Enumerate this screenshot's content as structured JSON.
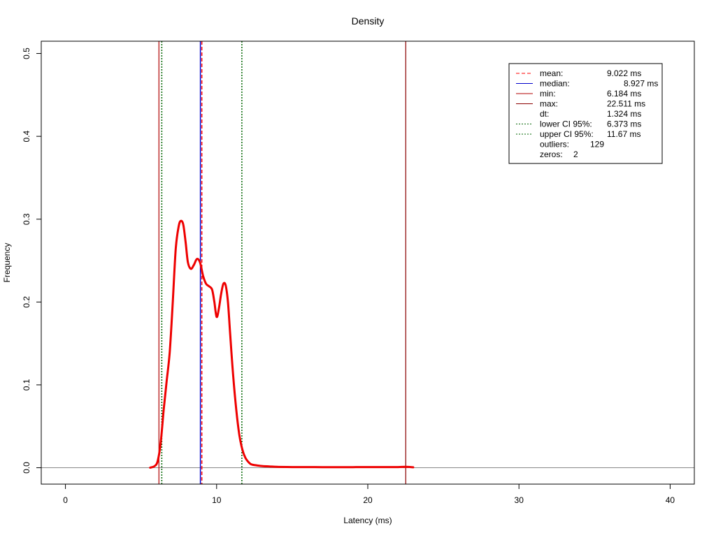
{
  "chart_data": {
    "type": "line",
    "title": "Density",
    "xlabel": "Latency (ms)",
    "ylabel": "Frequency",
    "xlim": [
      -1.6,
      41.6
    ],
    "ylim": [
      -0.0198,
      0.5148
    ],
    "xticks": [
      0,
      10,
      20,
      30,
      40
    ],
    "xtick_labels": [
      "0",
      "10",
      "20",
      "30",
      "40"
    ],
    "yticks": [
      0.0,
      0.1,
      0.2,
      0.3,
      0.4,
      0.5
    ],
    "ytick_labels": [
      "0.0",
      "0.1",
      "0.2",
      "0.3",
      "0.4",
      "0.5"
    ],
    "grid": false,
    "legend_position": "top-right",
    "colors": {
      "density": "#ee0000",
      "mean": "#ff0000",
      "median": "#0000cc",
      "min": "#b00000",
      "max": "#8b0000",
      "ci": "#006400",
      "baseline": "#888888"
    },
    "series": [
      {
        "x": [
          5.6,
          5.9,
          6.1,
          6.3,
          6.5,
          6.7,
          6.9,
          7.1,
          7.3,
          7.5,
          7.65,
          7.8,
          7.95,
          8.1,
          8.3,
          8.5,
          8.7,
          8.9,
          9.1,
          9.3,
          9.5,
          9.7,
          9.85,
          10.0,
          10.15,
          10.3,
          10.45,
          10.6,
          10.75,
          10.9,
          11.1,
          11.3,
          11.5,
          11.7,
          11.9,
          12.1,
          12.3,
          12.6,
          13.0,
          13.5,
          14.0,
          15.0,
          16.0,
          17.0,
          18.0,
          19.0,
          20.0,
          21.0,
          22.0,
          22.5,
          23.0
        ],
        "y": [
          0.0,
          0.002,
          0.008,
          0.03,
          0.07,
          0.105,
          0.14,
          0.2,
          0.265,
          0.292,
          0.298,
          0.293,
          0.272,
          0.248,
          0.24,
          0.245,
          0.252,
          0.248,
          0.232,
          0.222,
          0.219,
          0.215,
          0.2,
          0.182,
          0.192,
          0.21,
          0.222,
          0.22,
          0.2,
          0.16,
          0.11,
          0.07,
          0.04,
          0.022,
          0.012,
          0.007,
          0.004,
          0.003,
          0.002,
          0.0015,
          0.001,
          0.0008,
          0.0008,
          0.0007,
          0.0007,
          0.0007,
          0.0008,
          0.0008,
          0.0008,
          0.001,
          0.0005
        ]
      }
    ],
    "vlines": {
      "mean": 9.022,
      "median": 8.927,
      "min": 6.184,
      "max": 22.511,
      "lower_ci": 6.373,
      "upper_ci": 11.67
    },
    "baseline_y": 0.0,
    "legend": {
      "entries": [
        {
          "label": "mean:",
          "value": "9.022 ms",
          "style": "dashed",
          "color": "#ff0000"
        },
        {
          "label": "median:",
          "value": "8.927 ms",
          "style": "solid",
          "color": "#0000cc"
        },
        {
          "label": "min:",
          "value": "6.184 ms",
          "style": "solid",
          "color": "#b00000"
        },
        {
          "label": "max:",
          "value": "22.511 ms",
          "style": "solid",
          "color": "#8b0000"
        },
        {
          "label": "dt:",
          "value": "1.324 ms",
          "style": "none",
          "color": ""
        },
        {
          "label": "lower CI 95%:",
          "value": "6.373 ms",
          "style": "dotted",
          "color": "#006400"
        },
        {
          "label": "upper CI 95%:",
          "value": "11.67 ms",
          "style": "dotted",
          "color": "#006400"
        },
        {
          "label": "outliers:",
          "value": "129",
          "style": "none",
          "color": ""
        },
        {
          "label": "zeros:",
          "value": "2",
          "style": "none",
          "color": ""
        }
      ]
    }
  }
}
